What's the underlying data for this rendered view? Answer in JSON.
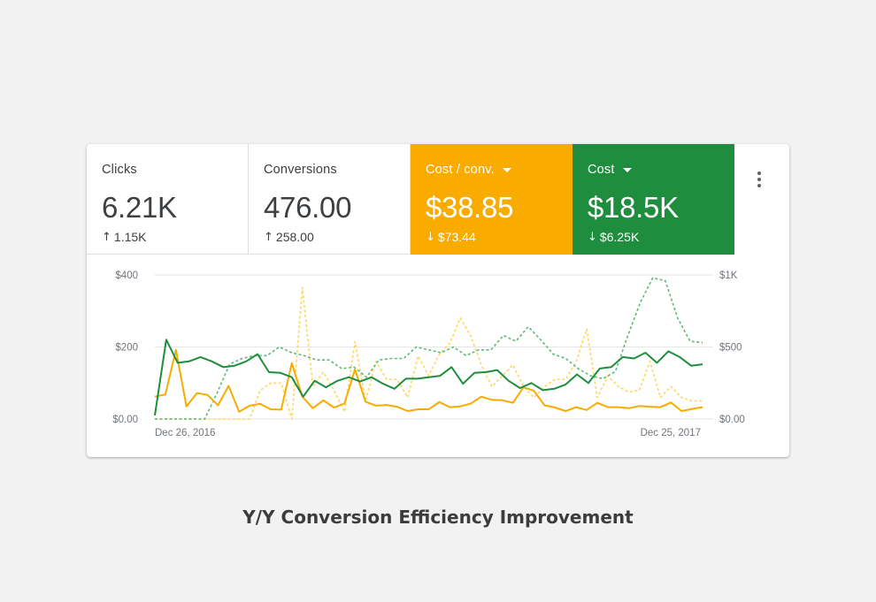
{
  "metrics": [
    {
      "label": "Clicks",
      "value": "6.21K",
      "change": "1.15K",
      "direction": "up",
      "selected": false,
      "color": ""
    },
    {
      "label": "Conversions",
      "value": "476.00",
      "change": "258.00",
      "direction": "up",
      "selected": false,
      "color": ""
    },
    {
      "label": "Cost / conv.",
      "value": "$38.85",
      "change": "$73.44",
      "direction": "down",
      "selected": true,
      "color": "#f9ab00"
    },
    {
      "label": "Cost",
      "value": "$18.5K",
      "change": "$6.25K",
      "direction": "down",
      "selected": true,
      "color": "#1e8e3e"
    }
  ],
  "icons": {
    "more": "more-vert-icon",
    "up": "↑",
    "down": "↓",
    "dropdown": "caret-down-icon"
  },
  "caption": "Y/Y Conversion Efficiency Improvement",
  "chart_data": {
    "type": "line",
    "x_labels": [
      "Dec 26, 2016",
      "Dec 25, 2017"
    ],
    "y_left_ticks": [
      "$400",
      "$200",
      "$0.00"
    ],
    "y_right_ticks": [
      "$1K",
      "$500",
      "$0.00"
    ],
    "ylim_left": [
      0,
      400
    ],
    "ylim_right": [
      0,
      1000
    ],
    "grid": true,
    "series": [
      {
        "name": "Cost / conv.",
        "axis": "left",
        "color": "#f9ab00",
        "dashed": false,
        "values": [
          62,
          68,
          192,
          35,
          72,
          67,
          38,
          92,
          20,
          37,
          42,
          27,
          26,
          155,
          62,
          30,
          52,
          32,
          43,
          138,
          48,
          37,
          39,
          34,
          22,
          27,
          27,
          47,
          33,
          35,
          43,
          62,
          53,
          52,
          45,
          88,
          78,
          38,
          32,
          22,
          33,
          25,
          45,
          33,
          33,
          30,
          36,
          34,
          33,
          46,
          22,
          28,
          33
        ]
      },
      {
        "name": "Cost / conv. (previous year)",
        "axis": "left",
        "color": "#fdd663",
        "dashed": true,
        "values": [
          0,
          0,
          0,
          0,
          0,
          0,
          0,
          0,
          0,
          0,
          80,
          100,
          100,
          0,
          365,
          90,
          130,
          80,
          20,
          215,
          50,
          160,
          110,
          110,
          60,
          175,
          120,
          180,
          210,
          280,
          230,
          150,
          90,
          120,
          150,
          90,
          60,
          90,
          110,
          110,
          160,
          250,
          60,
          120,
          90,
          75,
          80,
          160,
          60,
          90,
          60,
          50,
          50
        ]
      },
      {
        "name": "Cost",
        "axis": "right",
        "color": "#1e8e3e",
        "dashed": false,
        "values": [
          25,
          550,
          390,
          400,
          430,
          400,
          360,
          370,
          400,
          450,
          325,
          320,
          290,
          155,
          265,
          220,
          265,
          290,
          260,
          290,
          245,
          210,
          280,
          280,
          290,
          300,
          360,
          245,
          320,
          325,
          340,
          265,
          215,
          250,
          200,
          210,
          240,
          310,
          250,
          350,
          360,
          430,
          420,
          460,
          390,
          470,
          430,
          370,
          380
        ]
      },
      {
        "name": "Cost (previous year)",
        "axis": "right",
        "color": "#5fb878",
        "dashed": true,
        "values": [
          0,
          0,
          0,
          0,
          0,
          180,
          380,
          420,
          440,
          440,
          500,
          460,
          440,
          410,
          410,
          350,
          360,
          290,
          410,
          420,
          420,
          500,
          480,
          460,
          500,
          440,
          480,
          480,
          580,
          540,
          640,
          550,
          450,
          420,
          350,
          300,
          280,
          330,
          580,
          810,
          980,
          960,
          700,
          540,
          530
        ]
      }
    ]
  }
}
